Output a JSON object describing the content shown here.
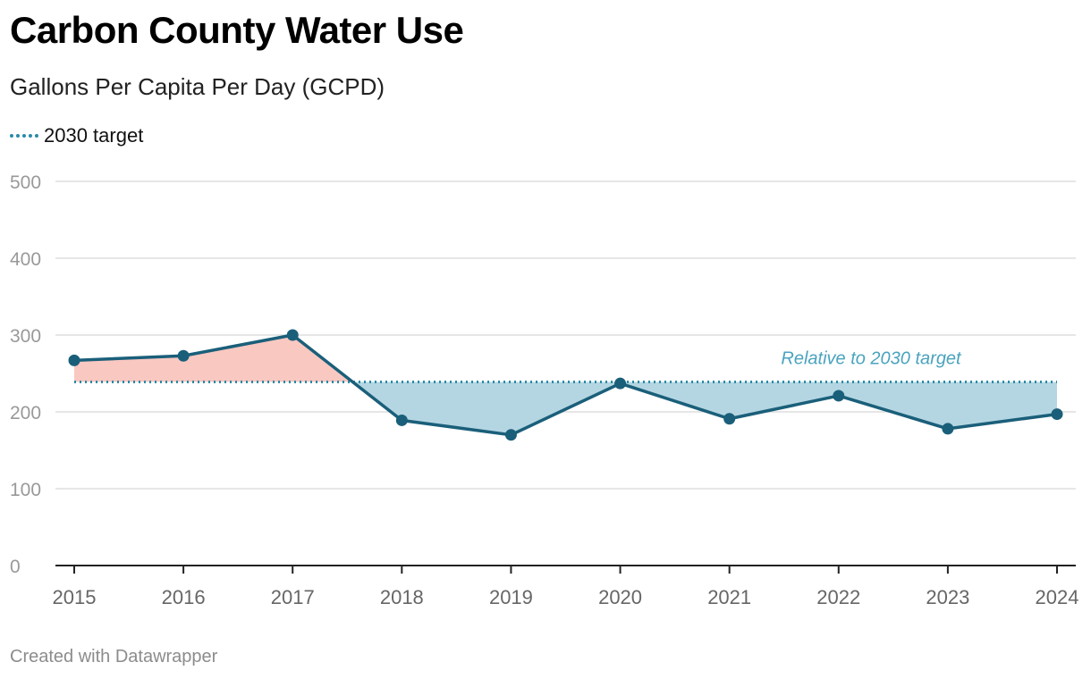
{
  "header": {
    "title": "Carbon County Water Use",
    "subtitle": "Gallons Per Capita Per Day (GCPD)"
  },
  "legend": {
    "items": [
      {
        "label": "2030 target",
        "style": "dotted",
        "color": "#2a8ba7"
      }
    ]
  },
  "footer": {
    "credit": "Created with Datawrapper"
  },
  "colors": {
    "line": "#1a5f7a",
    "target": "#2a8ba7",
    "above_fill": "#f9c8c1",
    "below_fill": "#b4d6e2",
    "annotation": "#4aa3bf",
    "grid": "#dddddd",
    "tick_text": "#999999",
    "x_tick_text": "#666666"
  },
  "chart_data": {
    "type": "line",
    "categories": [
      "2015",
      "2016",
      "2017",
      "2018",
      "2019",
      "2020",
      "2021",
      "2022",
      "2023",
      "2024"
    ],
    "series": [
      {
        "values": [
          267,
          273,
          300,
          189,
          170,
          237,
          191,
          221,
          178,
          197
        ]
      }
    ],
    "reference_lines": [
      {
        "name": "2030 target",
        "value": 239
      }
    ],
    "annotations": [
      {
        "text": "Relative to 2030 target"
      }
    ],
    "y_ticks": [
      0,
      100,
      200,
      300,
      400,
      500
    ],
    "ylim": [
      0,
      500
    ],
    "grid": true,
    "legend_position": "top-left",
    "title": "Carbon County Water Use",
    "subtitle": "Gallons Per Capita Per Day (GCPD)",
    "xlabel": "",
    "ylabel": ""
  }
}
